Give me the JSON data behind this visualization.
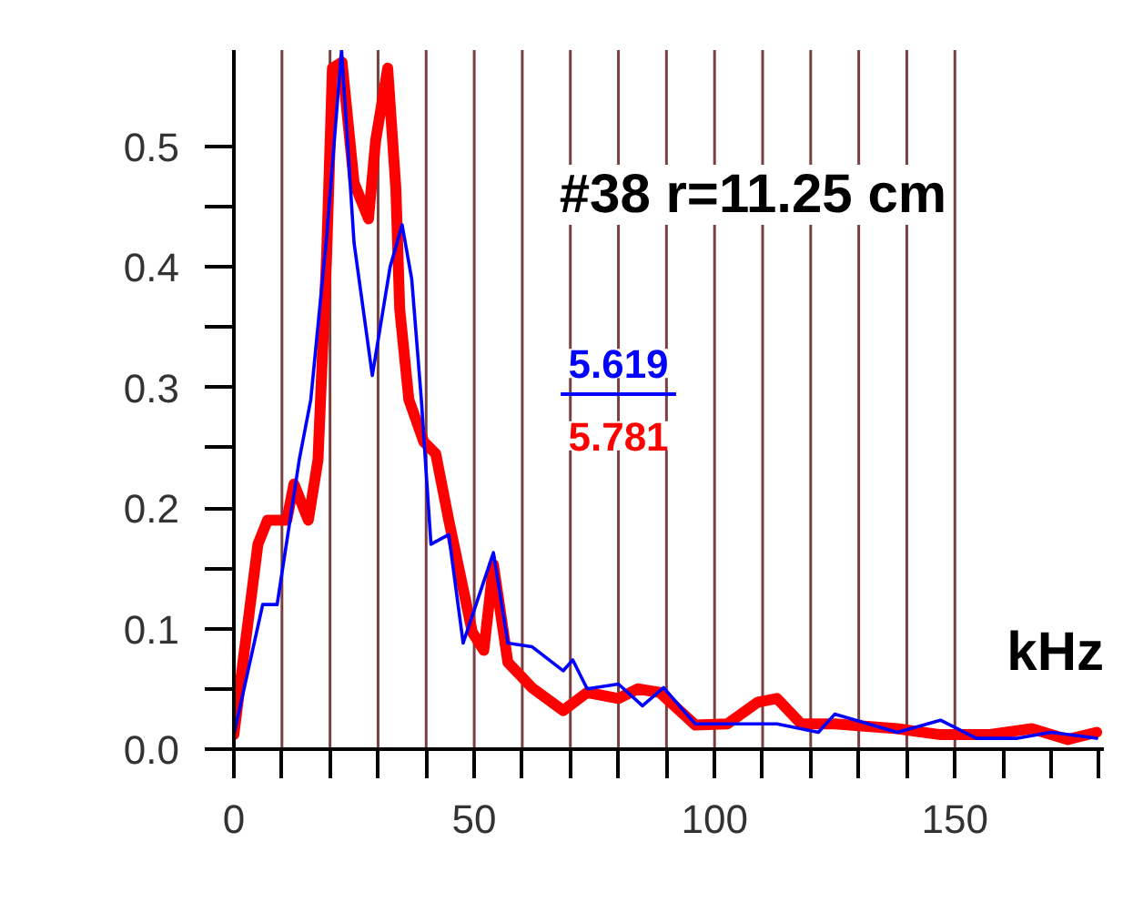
{
  "chart_data": {
    "type": "line",
    "xlabel": "kHz",
    "annotations": [
      "#38 r=11.25 cm",
      "5.619",
      "5.781"
    ],
    "xlim": [
      0,
      181
    ],
    "ylim": [
      0,
      0.58
    ],
    "xticks": [
      0,
      {
        "value": 10,
        "label": null
      },
      {
        "value": 20,
        "label": null
      },
      {
        "value": 30,
        "label": null
      },
      {
        "value": 40,
        "label": null
      },
      50,
      {
        "value": 60,
        "label": null
      },
      {
        "value": 70,
        "label": null
      },
      {
        "value": 80,
        "label": null
      },
      {
        "value": 90,
        "label": null
      },
      100,
      {
        "value": 110,
        "label": null
      },
      {
        "value": 120,
        "label": null
      },
      {
        "value": 130,
        "label": null
      },
      {
        "value": 140,
        "label": null
      },
      150,
      {
        "value": 160,
        "label": null
      },
      {
        "value": 170,
        "label": null
      },
      {
        "value": 180,
        "label": null
      }
    ],
    "yticks": [
      {
        "value": 0,
        "label": "0.0"
      },
      {
        "value": 0.05,
        "label": null
      },
      0.1,
      {
        "value": 0.15,
        "label": null
      },
      0.2,
      {
        "value": 0.25,
        "label": null
      },
      0.3,
      {
        "value": 0.35,
        "label": null
      },
      0.4,
      {
        "value": 0.45,
        "label": null
      },
      0.5
    ],
    "grid": false,
    "marker": "none",
    "line_style": "solid",
    "ref_lines": [
      {
        "axis": "x",
        "value": 10,
        "color": "#7a4040"
      },
      {
        "axis": "x",
        "value": 20,
        "color": "#7a4040"
      },
      {
        "axis": "x",
        "value": 30,
        "color": "#7a4040"
      },
      {
        "axis": "x",
        "value": 40,
        "color": "#7a4040"
      },
      {
        "axis": "x",
        "value": 50,
        "color": "#7a4040"
      },
      {
        "axis": "x",
        "value": 60,
        "color": "#7a4040"
      },
      {
        "axis": "x",
        "value": 70,
        "color": "#7a4040"
      },
      {
        "axis": "x",
        "value": 80,
        "color": "#7a4040"
      },
      {
        "axis": "x",
        "value": 90,
        "color": "#7a4040"
      },
      {
        "axis": "x",
        "value": 100,
        "color": "#7a4040"
      },
      {
        "axis": "x",
        "value": 110,
        "color": "#7a4040"
      },
      {
        "axis": "x",
        "value": 120,
        "color": "#7a4040"
      },
      {
        "axis": "x",
        "value": 130,
        "color": "#7a4040"
      },
      {
        "axis": "x",
        "value": 140,
        "color": "#7a4040"
      },
      {
        "axis": "x",
        "value": 150,
        "color": "#7a4040"
      }
    ],
    "series": [
      {
        "color": "#ff0000",
        "x": [
          0,
          1.5,
          5,
          7,
          11,
          12.5,
          15.5,
          17.5,
          19.3,
          20.5,
          22.5,
          25,
          28,
          29.5,
          32,
          33.7,
          34.5,
          36.4,
          39.5,
          42,
          44.7,
          49.6,
          52,
          54,
          57,
          62,
          68.5,
          73.5,
          80,
          84,
          88.6,
          96,
          102.7,
          109,
          113,
          118,
          125,
          138,
          147,
          157,
          166,
          173.5,
          179.5
        ],
        "values": [
          0.012,
          0.06,
          0.17,
          0.19,
          0.19,
          0.22,
          0.19,
          0.24,
          0.41,
          0.565,
          0.57,
          0.47,
          0.44,
          0.505,
          0.565,
          0.465,
          0.365,
          0.29,
          0.255,
          0.245,
          0.19,
          0.097,
          0.082,
          0.153,
          0.072,
          0.051,
          0.032,
          0.047,
          0.042,
          0.05,
          0.047,
          0.02,
          0.021,
          0.039,
          0.042,
          0.021,
          0.021,
          0.017,
          0.012,
          0.012,
          0.017,
          0.008,
          0.014
        ]
      },
      {
        "color": "#0000ff",
        "x": [
          0,
          6,
          9,
          13.6,
          16,
          19.3,
          22.4,
          25,
          28.8,
          32.5,
          35,
          37,
          39,
          41,
          44.7,
          47.7,
          54,
          57,
          62,
          68.5,
          70.5,
          73.5,
          80,
          85,
          89.4,
          96,
          113,
          121.6,
          125,
          138,
          147,
          154.5,
          163,
          170,
          179.5
        ],
        "values": [
          0.012,
          0.12,
          0.12,
          0.24,
          0.29,
          0.425,
          0.58,
          0.42,
          0.31,
          0.4,
          0.435,
          0.39,
          0.29,
          0.17,
          0.178,
          0.088,
          0.163,
          0.088,
          0.085,
          0.065,
          0.074,
          0.05,
          0.054,
          0.036,
          0.051,
          0.021,
          0.021,
          0.014,
          0.029,
          0.014,
          0.024,
          0.009,
          0.009,
          0.014,
          0.009
        ]
      }
    ]
  }
}
